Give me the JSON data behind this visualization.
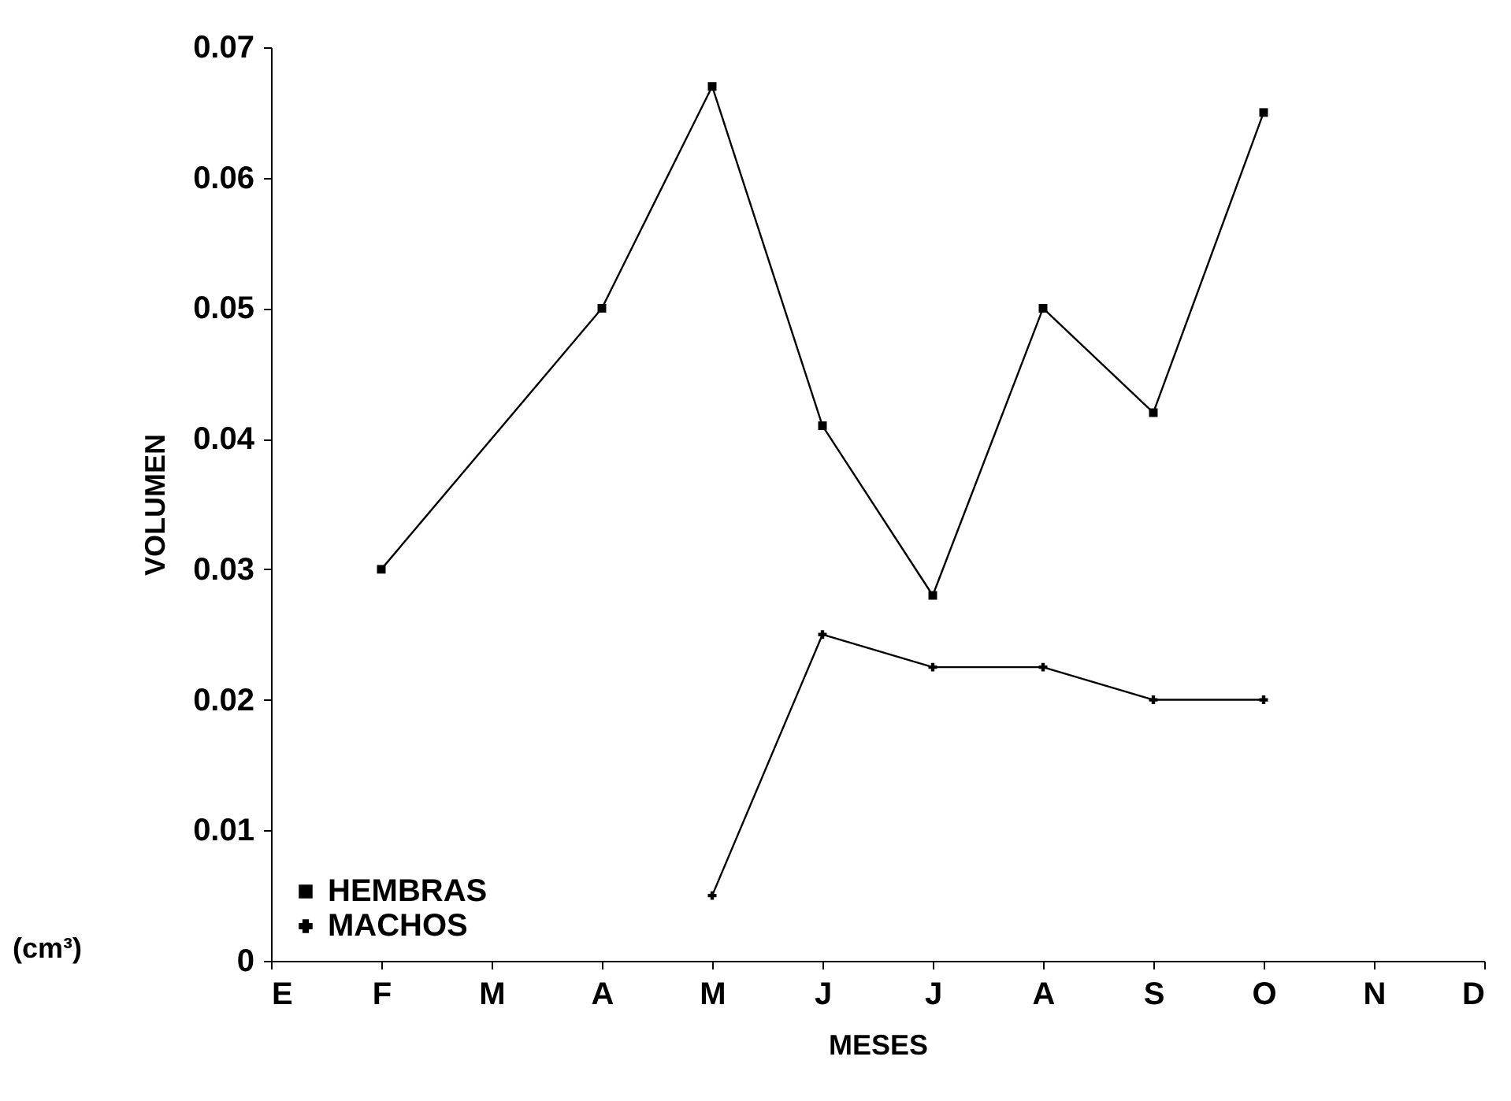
{
  "chart_data": {
    "type": "line",
    "xlabel": "MESES",
    "ylabel": "VOLUMEN",
    "annotations": [
      "(cm³)"
    ],
    "categories": [
      "E",
      "F",
      "M",
      "A",
      "M",
      "J",
      "J",
      "A",
      "S",
      "O",
      "N",
      "D"
    ],
    "series": [
      {
        "name": "HEMBRAS",
        "color": "#000000",
        "marker": "square",
        "values": [
          null,
          0.03,
          null,
          0.05,
          0.067,
          0.041,
          0.028,
          0.05,
          0.042,
          0.065,
          null,
          null
        ]
      },
      {
        "name": "MACHOS",
        "color": "#000000",
        "marker": "cross",
        "values": [
          null,
          null,
          null,
          null,
          0.005,
          0.025,
          0.0225,
          0.0225,
          0.02,
          0.02,
          null,
          null
        ]
      }
    ],
    "ylim": [
      0,
      0.07
    ],
    "yticks": [
      0,
      0.01,
      0.02,
      0.03,
      0.04,
      0.05,
      0.06,
      0.07
    ],
    "grid": false,
    "legend": "bottom left",
    "line_style": "solid"
  }
}
